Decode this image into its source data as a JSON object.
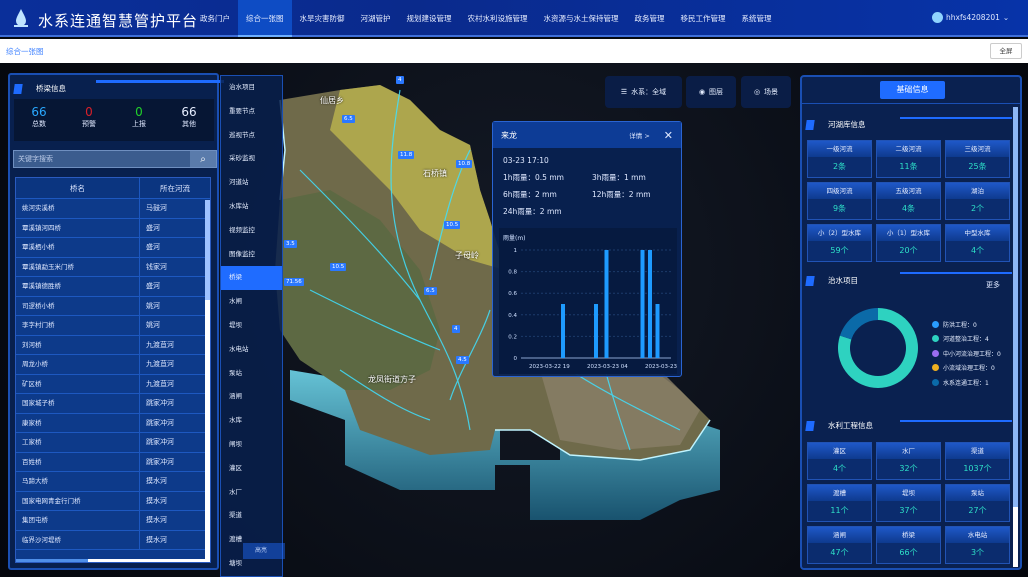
{
  "header": {
    "title": "水系连通智慧管护平台",
    "nav": [
      "政务门户",
      "综合一张图",
      "水旱灾害防御",
      "河湖管护",
      "规划建设管理",
      "农村水利设施管理",
      "水资源与水土保持管理",
      "政务管理",
      "移民工作管理",
      "系统管理"
    ],
    "active_nav": 1,
    "user": "hhxfs4208201"
  },
  "breadcrumb": {
    "current": "综合一张图",
    "fullscreen": "全屏"
  },
  "left_panel": {
    "title": "桥梁信息",
    "stats": [
      {
        "value": "66",
        "label": "总数",
        "color": "#29a8ff"
      },
      {
        "value": "0",
        "label": "预警",
        "color": "#d9202a"
      },
      {
        "value": "0",
        "label": "上报",
        "color": "#21d12a"
      },
      {
        "value": "66",
        "label": "其他",
        "color": "#e6eeff"
      }
    ],
    "search_placeholder": "关键字搜索",
    "columns": [
      "桥名",
      "所在河流"
    ],
    "rows": [
      [
        "姚河实溪桥",
        "马鼓河"
      ],
      [
        "覃溪镇河四桥",
        "盛河"
      ],
      [
        "覃溪栖小桥",
        "盛河"
      ],
      [
        "覃溪镇勐玉米门桥",
        "钱家河"
      ],
      [
        "覃溪镇德胜桥",
        "盛河"
      ],
      [
        "司逻桥小桥",
        "姚河"
      ],
      [
        "李字村门桥",
        "姚河"
      ],
      [
        "刘河桥",
        "九渡苴河"
      ],
      [
        "周龙小桥",
        "九渡苴河"
      ],
      [
        "矿区桥",
        "九渡苴河"
      ],
      [
        "国家城子桥",
        "跳家冲河"
      ],
      [
        "康家桥",
        "跳家冲河"
      ],
      [
        "工家桥",
        "跳家冲河"
      ],
      [
        "百姓桥",
        "跳家冲河"
      ],
      [
        "马蹄大桥",
        "摸水河"
      ],
      [
        "国家电网青金行门桥",
        "摸水河"
      ],
      [
        "集团屯桥",
        "摸水河"
      ],
      [
        "临界沙河堤桥",
        "摸水河"
      ]
    ]
  },
  "layer_menu": {
    "items": [
      "治水项目",
      "重要节点",
      "巡视节点",
      "采砂监视",
      "河道站",
      "水库站",
      "视频监控",
      "图像监控",
      "桥梁",
      "水闸",
      "堤坝",
      "水电站",
      "泵站",
      "涵闸",
      "水库",
      "闸坝",
      "灌区",
      "水厂",
      "渠道",
      "渡槽",
      "塘坝"
    ],
    "active": 8,
    "tooltip": "高亮"
  },
  "map": {
    "controls": [
      {
        "icon": "layers-icon",
        "label": "水系：全域"
      },
      {
        "icon": "location-icon",
        "label": "图层"
      },
      {
        "icon": "eye-icon",
        "label": "场景"
      }
    ],
    "places": [
      "仙居乡",
      "石桥镇",
      "子母岭",
      "龙凤街道方子"
    ],
    "markers": [
      "4",
      "6.5",
      "11.8",
      "10.8",
      "10.5",
      "10.5",
      "6.5",
      "4",
      "4.5",
      "3.5",
      "71.56"
    ]
  },
  "popup": {
    "title": "来龙",
    "detail": "详情 >",
    "time": "03-23 17:10",
    "rain": [
      [
        "1h雨量：0.5 mm",
        "3h雨量：1 mm"
      ],
      [
        "6h雨量：2 mm",
        "12h雨量：2 mm"
      ],
      [
        "24h雨量：2 mm",
        ""
      ]
    ],
    "chart_data": {
      "type": "bar",
      "ylabel": "雨量(m)",
      "ylim": [
        0,
        1
      ],
      "yticks": [
        "0",
        "0.2",
        "0.4",
        "0.6",
        "0.8",
        "1"
      ],
      "xticks": [
        "2023-03-22 19",
        "2023-03-23 04",
        "2023-03-23 13"
      ],
      "values": [
        0.5,
        0.5,
        1,
        1,
        1,
        0.5
      ],
      "color": "#1e9bff"
    }
  },
  "right_panel": {
    "button": "基础信息",
    "rivers": {
      "title": "河湖库信息",
      "items": [
        [
          "一级河流",
          "2条"
        ],
        [
          "二级河流",
          "11条"
        ],
        [
          "三级河流",
          "25条"
        ],
        [
          "四级河流",
          "9条"
        ],
        [
          "五级河流",
          "4条"
        ],
        [
          "湖泊",
          "2个"
        ],
        [
          "小（2）型水库",
          "59个"
        ],
        [
          "小（1）型水库",
          "20个"
        ],
        [
          "中型水库",
          "4个"
        ]
      ]
    },
    "projects": {
      "title": "治水项目",
      "more": "更多",
      "legend": [
        {
          "label": "防洪工程：0",
          "value": 0,
          "color": "#2a9dff"
        },
        {
          "label": "河道整治工程：4",
          "value": 4,
          "color": "#2ed2c0"
        },
        {
          "label": "中小河流治理工程：0",
          "value": 0,
          "color": "#9b6cf0"
        },
        {
          "label": "小流域治理工程：0",
          "value": 0,
          "color": "#f0b020"
        },
        {
          "label": "水系连通工程：1",
          "value": 1,
          "color": "#0b6aa8"
        }
      ]
    },
    "works": {
      "title": "水利工程信息",
      "items": [
        [
          "灌区",
          "4个"
        ],
        [
          "水厂",
          "32个"
        ],
        [
          "渠道",
          "1037个"
        ],
        [
          "渡槽",
          "11个"
        ],
        [
          "堤坝",
          "37个"
        ],
        [
          "泵站",
          "27个"
        ],
        [
          "涵闸",
          "47个"
        ],
        [
          "桥梁",
          "66个"
        ],
        [
          "水电站",
          "3个"
        ]
      ]
    }
  }
}
